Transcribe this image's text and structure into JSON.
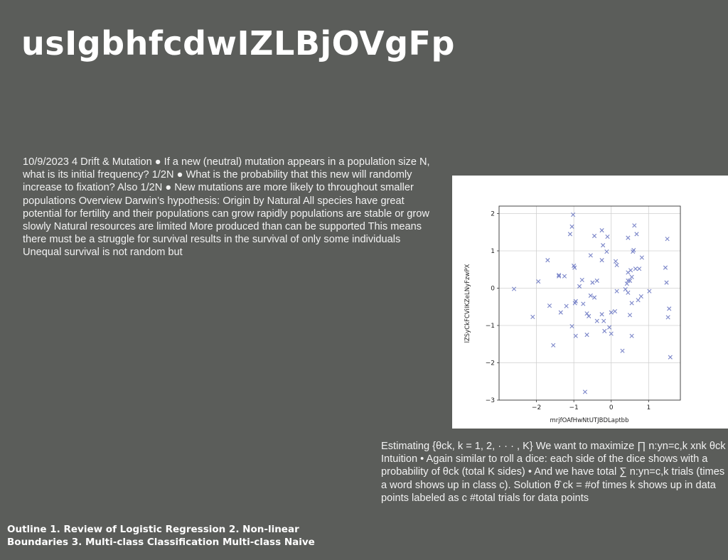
{
  "slide": {
    "title": "usIgbhfcdwIZLBjOVgFp",
    "paragraph_left": "10/9/2023 4 Drift & Mutation ● If a new (neutral) mutation appears in a population size N, what is its initial frequency? 1/2N ● What is the probability that this new will randomly increase to fixation? Also 1/2N ● New mutations are more likely to throughout smaller populations Overview Darwin’s hypothesis: Origin by Natural All species have great potential for fertility and their populations can grow rapidly populations are stable or grow slowly Natural resources are limited More produced than can be supported This means there must be a struggle for survival results in the survival of only some individuals Unequal survival is not random but",
    "paragraph_right": "Estimating {θck, k = 1, 2, · · · , K} We want to maximize ∏ n:yn=c,k xnk θck Intuition • Again similar to roll a dice: each side of the dice shows with a probability of θck (total K sides) • And we have total ∑ n:yn=c,k trials (times a word shows up in class c). Solution θ̂ ck = #of times k shows up in data points labeled as c #total trials for data points",
    "outline": "Outline 1. Review of Logistic Regression 2. Non-linear Boundaries 3. Multi-class Classification Multi-class Naive"
  },
  "chart_data": {
    "type": "scatter",
    "marker": "x",
    "color": "#7b86c9",
    "xlabel": "mrjfOAfHwNtUTJBDLaptbb",
    "ylabel": "lZSyCkFCViIKZeLNyFzwPX",
    "xlim": [
      -3.0,
      1.85
    ],
    "ylim": [
      -3.0,
      2.2
    ],
    "xticks": [
      -2,
      -1,
      0,
      1
    ],
    "yticks": [
      -3,
      -2,
      -1,
      0,
      1,
      2
    ],
    "grid": true,
    "points": [
      [
        -2.6,
        -0.02
      ],
      [
        -2.1,
        -0.77
      ],
      [
        -1.95,
        0.18
      ],
      [
        -1.7,
        0.75
      ],
      [
        -1.65,
        -0.47
      ],
      [
        -1.55,
        -1.53
      ],
      [
        -1.4,
        0.35
      ],
      [
        -1.4,
        0.32
      ],
      [
        -1.35,
        -0.65
      ],
      [
        -1.25,
        0.32
      ],
      [
        -1.2,
        -0.48
      ],
      [
        -1.1,
        1.45
      ],
      [
        -1.05,
        1.65
      ],
      [
        -1.02,
        1.97
      ],
      [
        -1.05,
        -1.02
      ],
      [
        -1.0,
        0.6
      ],
      [
        -0.98,
        0.55
      ],
      [
        -0.95,
        -0.35
      ],
      [
        -0.97,
        -0.4
      ],
      [
        -0.95,
        -1.28
      ],
      [
        -0.85,
        0.05
      ],
      [
        -0.78,
        0.22
      ],
      [
        -0.75,
        -0.42
      ],
      [
        -0.7,
        -2.78
      ],
      [
        -0.65,
        -0.68
      ],
      [
        -0.65,
        -1.25
      ],
      [
        -0.6,
        -0.75
      ],
      [
        -0.55,
        0.88
      ],
      [
        -0.55,
        -0.2
      ],
      [
        -0.5,
        0.15
      ],
      [
        -0.45,
        1.4
      ],
      [
        -0.45,
        -0.25
      ],
      [
        -0.38,
        0.2
      ],
      [
        -0.38,
        -0.88
      ],
      [
        -0.25,
        0.75
      ],
      [
        -0.25,
        1.55
      ],
      [
        -0.22,
        1.15
      ],
      [
        -0.25,
        -0.7
      ],
      [
        -0.2,
        -0.88
      ],
      [
        -0.18,
        -1.15
      ],
      [
        -0.12,
        0.98
      ],
      [
        -0.1,
        1.38
      ],
      [
        -0.05,
        -1.05
      ],
      [
        0.0,
        -0.65
      ],
      [
        0.0,
        -1.22
      ],
      [
        0.1,
        -0.62
      ],
      [
        0.12,
        0.72
      ],
      [
        0.15,
        0.62
      ],
      [
        0.15,
        -0.08
      ],
      [
        0.3,
        -1.68
      ],
      [
        0.38,
        -0.03
      ],
      [
        0.42,
        0.12
      ],
      [
        0.45,
        0.42
      ],
      [
        0.45,
        0.2
      ],
      [
        0.45,
        -0.12
      ],
      [
        0.45,
        1.35
      ],
      [
        0.5,
        0.2
      ],
      [
        0.5,
        -0.72
      ],
      [
        0.52,
        0.48
      ],
      [
        0.55,
        0.3
      ],
      [
        0.55,
        -0.4
      ],
      [
        0.55,
        -1.28
      ],
      [
        0.58,
        0.98
      ],
      [
        0.6,
        1.02
      ],
      [
        0.62,
        1.68
      ],
      [
        0.65,
        0.52
      ],
      [
        0.68,
        1.45
      ],
      [
        0.72,
        -0.32
      ],
      [
        0.75,
        0.52
      ],
      [
        0.8,
        -0.22
      ],
      [
        0.82,
        0.82
      ],
      [
        1.02,
        -0.08
      ],
      [
        1.45,
        0.55
      ],
      [
        1.48,
        0.15
      ],
      [
        1.5,
        1.32
      ],
      [
        1.52,
        -0.78
      ],
      [
        1.55,
        -0.55
      ],
      [
        1.58,
        -1.85
      ]
    ]
  }
}
